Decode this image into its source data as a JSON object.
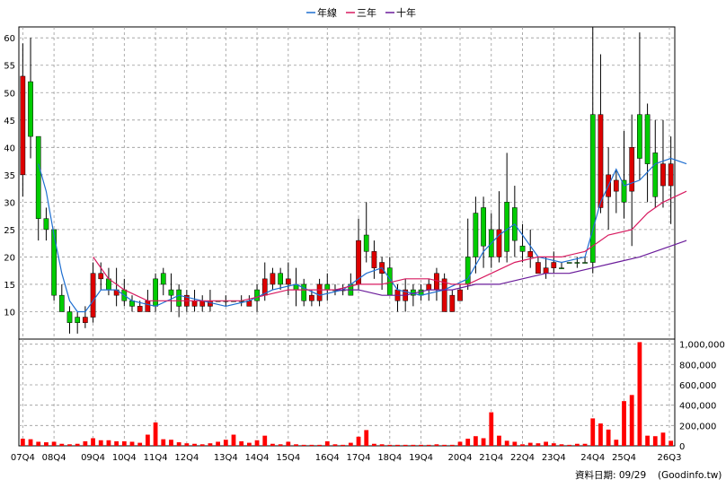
{
  "chart_data": {
    "type": "candlestick",
    "legend": {
      "placement": "top-center",
      "items": [
        {
          "label": "年線",
          "color": "#1f6fd1"
        },
        {
          "label": "三年",
          "color": "#d81b60"
        },
        {
          "label": "十年",
          "color": "#6a1b9a"
        }
      ]
    },
    "x_tick_labels": [
      "07Q4",
      "08Q4",
      "09Q4",
      "10Q4",
      "11Q4",
      "12Q4",
      "13Q4",
      "14Q4",
      "15Q4",
      "16Q4",
      "17Q4",
      "18Q4",
      "19Q4",
      "20Q4",
      "21Q4",
      "22Q4",
      "23Q4",
      "24Q4",
      "25Q4",
      "26Q3"
    ],
    "price_axis": {
      "ylim": [
        5,
        62
      ],
      "ticks": [
        10,
        15,
        20,
        25,
        30,
        35,
        40,
        45,
        50,
        55,
        60
      ],
      "grid": true
    },
    "volume_axis": {
      "ylim": [
        0,
        1050000
      ],
      "ticks": [
        0,
        200000,
        400000,
        600000,
        800000,
        1000000
      ],
      "tick_labels": [
        "0",
        "200,000",
        "400,000",
        "600,000",
        "800,000",
        "1,000,000"
      ],
      "grid": true
    },
    "colors": {
      "up": "#00cc00",
      "down": "#dd0000",
      "wick": "#000000",
      "volume": "#ff0000",
      "grid": "#999999"
    },
    "candles": [
      [
        53,
        35,
        59,
        31
      ],
      [
        42,
        52,
        60,
        38
      ],
      [
        27,
        42,
        41,
        23
      ],
      [
        25,
        27,
        29,
        23
      ],
      [
        13,
        25,
        25,
        12
      ],
      [
        10,
        13,
        15,
        10
      ],
      [
        8,
        10,
        11,
        6
      ],
      [
        8,
        9,
        10,
        6
      ],
      [
        9,
        8,
        11,
        7
      ],
      [
        17,
        9,
        19,
        8
      ],
      [
        17,
        16,
        19,
        14
      ],
      [
        14,
        16,
        18,
        13
      ],
      [
        14,
        13,
        18,
        11
      ],
      [
        12,
        14,
        16,
        11
      ],
      [
        11,
        12,
        13,
        10
      ],
      [
        11,
        10,
        12,
        10
      ],
      [
        12,
        10,
        14,
        10
      ],
      [
        11,
        16,
        17,
        10
      ],
      [
        15,
        17,
        18,
        13
      ],
      [
        13,
        14,
        17,
        10
      ],
      [
        11,
        14,
        15,
        9
      ],
      [
        13,
        11,
        14,
        10
      ],
      [
        12,
        11,
        14,
        10
      ],
      [
        12,
        11,
        13,
        10
      ],
      [
        12,
        11,
        14,
        10
      ],
      [
        12,
        12,
        12,
        12
      ],
      [
        12,
        12,
        13,
        11
      ],
      [
        12,
        12,
        12,
        12
      ],
      [
        12,
        12,
        13,
        11
      ],
      [
        12,
        11,
        13,
        11
      ],
      [
        12,
        14,
        15,
        10
      ],
      [
        16,
        13,
        19,
        12
      ],
      [
        17,
        15,
        18,
        14
      ],
      [
        15,
        17,
        18,
        14
      ],
      [
        16,
        15,
        19,
        13
      ],
      [
        14,
        15,
        18,
        11
      ],
      [
        12,
        15,
        16,
        11
      ],
      [
        13,
        12,
        14,
        11
      ],
      [
        15,
        12,
        16,
        11
      ],
      [
        14,
        15,
        17,
        12
      ],
      [
        14,
        14,
        15,
        13
      ],
      [
        14,
        14,
        15,
        13
      ],
      [
        13,
        15,
        17,
        13
      ],
      [
        23,
        15,
        27,
        14
      ],
      [
        21,
        24,
        30,
        19
      ],
      [
        21,
        18,
        23,
        16
      ],
      [
        19,
        17,
        20,
        14
      ],
      [
        13,
        18,
        20,
        13
      ],
      [
        14,
        12,
        15,
        10
      ],
      [
        14,
        12,
        16,
        10
      ],
      [
        13,
        14,
        15,
        11
      ],
      [
        13,
        14,
        15,
        12
      ],
      [
        15,
        14,
        16,
        12
      ],
      [
        17,
        14,
        18,
        12
      ],
      [
        16,
        10,
        17,
        10
      ],
      [
        13,
        10,
        14,
        10
      ],
      [
        14,
        12,
        15,
        12
      ],
      [
        15,
        20,
        27,
        14
      ],
      [
        20,
        28,
        31,
        17
      ],
      [
        22,
        29,
        31,
        18
      ],
      [
        20,
        25,
        28,
        18
      ],
      [
        25,
        20,
        32,
        19
      ],
      [
        21,
        30,
        39,
        19
      ],
      [
        23,
        29,
        33,
        20
      ],
      [
        21,
        22,
        26,
        19
      ],
      [
        21,
        20,
        25,
        18
      ],
      [
        19,
        17,
        20,
        17
      ],
      [
        18,
        17,
        20,
        16
      ],
      [
        19,
        18,
        21,
        17
      ],
      [
        18,
        18,
        19,
        18
      ],
      [
        19,
        19,
        19,
        19
      ],
      [
        19,
        19,
        20,
        18
      ],
      [
        19,
        19,
        20,
        19
      ],
      [
        19,
        46,
        62,
        17
      ],
      [
        46,
        29,
        57,
        28
      ],
      [
        35,
        31,
        40,
        25
      ],
      [
        34,
        32,
        36,
        28
      ],
      [
        30,
        34,
        43,
        27
      ],
      [
        40,
        32,
        46,
        22
      ],
      [
        38,
        46,
        61,
        34
      ],
      [
        37,
        46,
        48,
        30
      ],
      [
        31,
        39,
        45,
        29
      ],
      [
        37,
        33,
        45,
        29
      ],
      [
        37,
        33,
        42,
        26
      ]
    ],
    "series": [
      {
        "name": "年線",
        "color": "#1f6fd1",
        "values": [
          [
            2,
            37
          ],
          [
            3,
            32
          ],
          [
            4,
            24
          ],
          [
            5,
            17
          ],
          [
            6,
            12
          ],
          [
            7,
            10
          ],
          [
            8,
            10
          ],
          [
            9,
            12
          ],
          [
            10,
            14
          ],
          [
            11,
            14
          ],
          [
            12,
            14
          ],
          [
            14,
            12
          ],
          [
            17,
            11
          ],
          [
            20,
            13
          ],
          [
            23,
            12
          ],
          [
            26,
            11
          ],
          [
            29,
            12
          ],
          [
            32,
            14
          ],
          [
            35,
            15
          ],
          [
            38,
            13
          ],
          [
            41,
            14
          ],
          [
            44,
            17
          ],
          [
            46,
            18
          ],
          [
            48,
            14
          ],
          [
            51,
            13
          ],
          [
            54,
            14
          ],
          [
            57,
            16
          ],
          [
            59,
            21
          ],
          [
            61,
            24
          ],
          [
            63,
            26
          ],
          [
            66,
            20
          ],
          [
            69,
            19
          ],
          [
            72,
            20
          ],
          [
            74,
            30
          ],
          [
            76,
            36
          ],
          [
            77,
            33
          ],
          [
            79,
            34
          ],
          [
            81,
            37
          ],
          [
            83,
            38
          ],
          [
            85,
            37
          ]
        ]
      },
      {
        "name": "三年",
        "color": "#d81b60",
        "values": [
          [
            9,
            20
          ],
          [
            11,
            16
          ],
          [
            13,
            14
          ],
          [
            16,
            12
          ],
          [
            19,
            12
          ],
          [
            22,
            12
          ],
          [
            25,
            12
          ],
          [
            28,
            12
          ],
          [
            31,
            13
          ],
          [
            34,
            14
          ],
          [
            37,
            14
          ],
          [
            40,
            14
          ],
          [
            43,
            15
          ],
          [
            46,
            15
          ],
          [
            49,
            16
          ],
          [
            52,
            16
          ],
          [
            55,
            15
          ],
          [
            57,
            15
          ],
          [
            60,
            17
          ],
          [
            63,
            19
          ],
          [
            66,
            20
          ],
          [
            69,
            20
          ],
          [
            72,
            21
          ],
          [
            75,
            24
          ],
          [
            78,
            25
          ],
          [
            80,
            28
          ],
          [
            82,
            30
          ],
          [
            85,
            32
          ]
        ]
      },
      {
        "name": "十年",
        "color": "#6a1b9a",
        "values": [
          [
            40,
            14
          ],
          [
            43,
            14
          ],
          [
            46,
            13
          ],
          [
            49,
            13
          ],
          [
            52,
            14
          ],
          [
            55,
            14
          ],
          [
            58,
            15
          ],
          [
            61,
            15
          ],
          [
            64,
            16
          ],
          [
            67,
            17
          ],
          [
            70,
            17
          ],
          [
            73,
            18
          ],
          [
            76,
            19
          ],
          [
            79,
            20
          ],
          [
            81,
            21
          ],
          [
            85,
            23
          ]
        ]
      }
    ],
    "volume": [
      70000,
      65000,
      40000,
      35000,
      40000,
      20000,
      15000,
      20000,
      45000,
      75000,
      55000,
      55000,
      45000,
      45000,
      40000,
      30000,
      110000,
      230000,
      65000,
      60000,
      35000,
      25000,
      20000,
      15000,
      25000,
      40000,
      60000,
      110000,
      45000,
      30000,
      55000,
      100000,
      20000,
      15000,
      40000,
      15000,
      10000,
      10000,
      10000,
      45000,
      15000,
      10000,
      30000,
      90000,
      155000,
      20000,
      15000,
      10000,
      10000,
      10000,
      10000,
      10000,
      10000,
      15000,
      10000,
      10000,
      40000,
      70000,
      95000,
      75000,
      330000,
      100000,
      50000,
      40000,
      15000,
      30000,
      25000,
      40000,
      25000,
      15000,
      10000,
      20000,
      20000,
      270000,
      220000,
      160000,
      60000,
      440000,
      500000,
      1020000,
      100000,
      95000,
      130000,
      50000
    ]
  },
  "footer": {
    "date_text": "資料日期: 09/29",
    "source_text": "(Goodinfo.tw)"
  }
}
